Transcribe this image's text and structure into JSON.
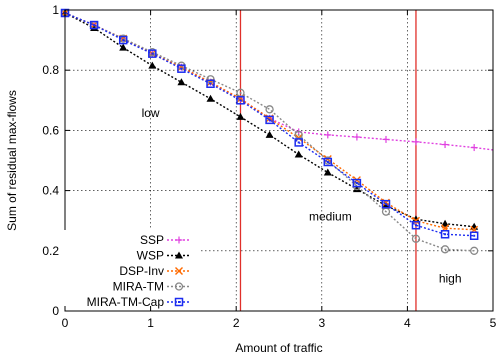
{
  "chart_data": {
    "type": "line",
    "title": "",
    "xlabel": "Amount of traffic",
    "ylabel": "Sum of residual max-flows",
    "xlim": [
      0,
      5
    ],
    "ylim": [
      0,
      1
    ],
    "xticks": [
      "0",
      "1",
      "2",
      "3",
      "4",
      "5"
    ],
    "yticks": [
      "0",
      "0.2",
      "0.4",
      "0.6",
      "0.8",
      "1"
    ],
    "grid": true,
    "legend_position": "bottom-left",
    "vertical_lines": [
      2.05,
      4.1
    ],
    "vertical_line_color": "#e0302a",
    "annotations": [
      {
        "text": "low",
        "x": 1.0,
        "y": 0.645
      },
      {
        "text": "medium",
        "x": 3.1,
        "y": 0.3
      },
      {
        "text": "high",
        "x": 4.5,
        "y": 0.095
      }
    ],
    "series": [
      {
        "name": "SSP",
        "color": "#e040e0",
        "marker": "plus",
        "x": [
          0,
          0.34,
          0.68,
          1.02,
          1.36,
          1.7,
          2.05,
          2.39,
          2.73,
          3.07,
          3.41,
          3.75,
          4.1,
          4.44,
          4.78,
          5.0
        ],
        "y": [
          0.99,
          0.95,
          0.905,
          0.855,
          0.81,
          0.76,
          0.705,
          0.64,
          0.595,
          0.585,
          0.578,
          0.57,
          0.562,
          0.553,
          0.543,
          0.535
        ]
      },
      {
        "name": "WSP",
        "color": "#000000",
        "marker": "triangle",
        "x": [
          0,
          0.34,
          0.68,
          1.02,
          1.36,
          1.7,
          2.05,
          2.39,
          2.73,
          3.07,
          3.41,
          3.75,
          4.1,
          4.44,
          4.78
        ],
        "y": [
          0.99,
          0.94,
          0.875,
          0.815,
          0.76,
          0.705,
          0.645,
          0.585,
          0.52,
          0.46,
          0.405,
          0.35,
          0.305,
          0.29,
          0.28
        ]
      },
      {
        "name": "DSP-Inv",
        "color": "#ff6a00",
        "marker": "cross",
        "x": [
          0,
          0.34,
          0.68,
          1.02,
          1.36,
          1.7,
          2.05,
          2.39,
          2.73,
          3.07,
          3.41,
          3.75,
          4.1,
          4.44,
          4.78
        ],
        "y": [
          0.99,
          0.95,
          0.905,
          0.855,
          0.81,
          0.76,
          0.705,
          0.64,
          0.575,
          0.505,
          0.435,
          0.36,
          0.3,
          0.275,
          0.27
        ]
      },
      {
        "name": "MIRA-TM",
        "color": "#888888",
        "marker": "circle",
        "x": [
          0,
          0.34,
          0.68,
          1.02,
          1.36,
          1.7,
          2.05,
          2.39,
          2.73,
          3.07,
          3.41,
          3.75,
          4.1,
          4.44,
          4.78
        ],
        "y": [
          0.99,
          0.95,
          0.905,
          0.86,
          0.815,
          0.77,
          0.725,
          0.67,
          0.585,
          0.5,
          0.415,
          0.33,
          0.24,
          0.205,
          0.2
        ]
      },
      {
        "name": "MIRA-TM-Cap",
        "color": "#1c2cf0",
        "marker": "square",
        "x": [
          0,
          0.34,
          0.68,
          1.02,
          1.36,
          1.7,
          2.05,
          2.39,
          2.73,
          3.07,
          3.41,
          3.75,
          4.1,
          4.44,
          4.78
        ],
        "y": [
          0.99,
          0.95,
          0.9,
          0.855,
          0.805,
          0.755,
          0.7,
          0.635,
          0.56,
          0.495,
          0.425,
          0.355,
          0.285,
          0.255,
          0.25
        ]
      }
    ]
  }
}
